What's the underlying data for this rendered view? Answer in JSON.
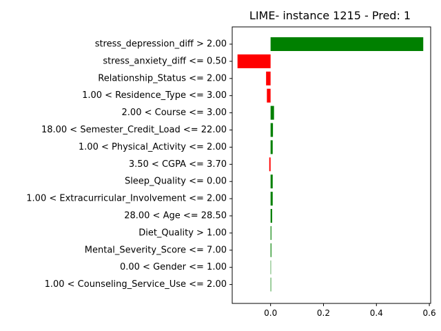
{
  "chart_data": {
    "type": "bar",
    "orientation": "horizontal",
    "title": "LIME- instance 1215 - Pred: 1",
    "xlabel": "",
    "ylabel": "",
    "xlim": [
      -0.145,
      0.605
    ],
    "xticks": [
      {
        "value": 0.0,
        "label": "0.0"
      },
      {
        "value": 0.2,
        "label": "0.2"
      },
      {
        "value": 0.4,
        "label": "0.4"
      },
      {
        "value": 0.6,
        "label": "0.6"
      }
    ],
    "grid": false,
    "positive_color": "#008000",
    "negative_color": "#ff0000",
    "categories": [
      "stress_depression_diff > 2.00",
      "stress_anxiety_diff <= 0.50",
      "Relationship_Status <= 2.00",
      "1.00 < Residence_Type <= 3.00",
      "2.00 < Course <= 3.00",
      "18.00 < Semester_Credit_Load <= 22.00",
      "1.00 < Physical_Activity <= 2.00",
      "3.50 < CGPA <= 3.70",
      "Sleep_Quality <= 0.00",
      "1.00 < Extracurricular_Involvement <= 2.00",
      "28.00 < Age <= 28.50",
      "Diet_Quality > 1.00",
      "Mental_Severity_Score <= 7.00",
      "0.00 < Gender <= 1.00",
      "1.00 < Counseling_Service_Use <= 2.00"
    ],
    "values": [
      0.577,
      -0.125,
      -0.017,
      -0.014,
      0.013,
      0.009,
      0.008,
      -0.005,
      0.008,
      0.008,
      0.006,
      0.003,
      0.003,
      0.0005,
      0.002
    ]
  }
}
